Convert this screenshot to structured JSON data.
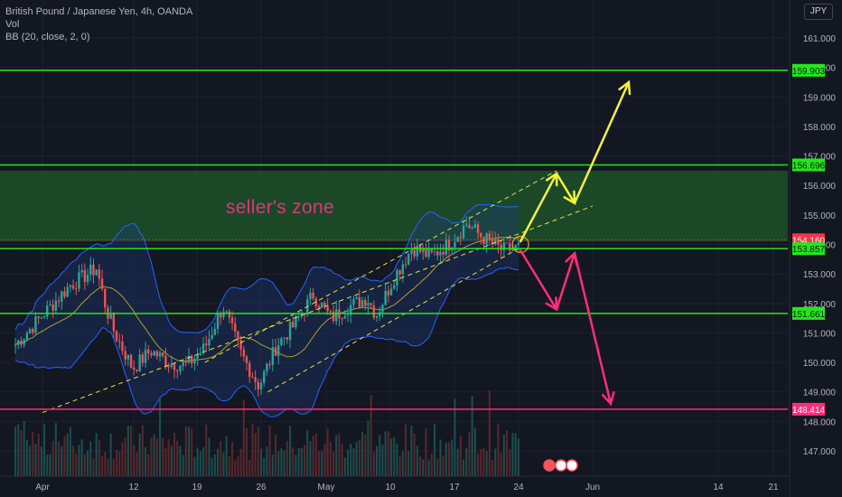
{
  "legend": {
    "symbol": "British Pound / Japanese Yen, 4h, OANDA",
    "volume": "Vol",
    "bb": "BB (20, close, 2, 0)"
  },
  "currency": "JPY",
  "zone_label": "seller's zone",
  "colors": {
    "background": "#131722",
    "green_level": "#22e81a",
    "pink_level": "#ff2e7a",
    "zone_fill": "#1f5a2a",
    "up_candle": "#26a69a",
    "down_candle": "#ef5350",
    "bb_band": "#2962ff",
    "bb_basis": "#b3a02a",
    "yellow_arrow": "#f3f33b",
    "pink_arrow": "#ff2e78",
    "channel": "#e6e63a"
  },
  "chart_data": {
    "type": "candlestick",
    "title": "British Pound / Japanese Yen, 4h, OANDA",
    "ylim": [
      146.3,
      162.6
    ],
    "y_ticks": [
      147.0,
      148.0,
      149.0,
      150.0,
      151.0,
      152.0,
      153.0,
      154.0,
      155.0,
      156.0,
      157.0,
      158.0,
      159.0,
      160.0,
      161.0
    ],
    "y_tick_labels": [
      "147.000",
      "148.000",
      "149.000",
      "150.000",
      "151.000",
      "152.000",
      "153.000",
      "154.000",
      "155.000",
      "156.000",
      "157.000",
      "158.000",
      "159.000",
      "160.000",
      "161.000"
    ],
    "x_ticks": [
      "Apr",
      "12",
      "19",
      "26",
      "May",
      "10",
      "17",
      "24",
      "Jun",
      "14",
      "21"
    ],
    "levels": [
      {
        "value": 159.903,
        "label": "159.903",
        "color": "green"
      },
      {
        "value": 156.696,
        "label": "156.696",
        "color": "green"
      },
      {
        "value": 154.16,
        "label": "154.160",
        "color": "red"
      },
      {
        "value": 153.857,
        "label": "153.857",
        "color": "green"
      },
      {
        "value": 151.661,
        "label": "151.661",
        "color": "green"
      },
      {
        "value": 148.414,
        "label": "148.414",
        "color": "pink"
      }
    ],
    "zone": {
      "from": 154.1,
      "to": 156.5,
      "label": "seller's zone"
    },
    "price_path": [
      {
        "date": "Mar 29",
        "price": 150.6
      },
      {
        "date": "Apr 1",
        "price": 151.6
      },
      {
        "date": "Apr 4",
        "price": 152.6
      },
      {
        "date": "Apr 7",
        "price": 153.2
      },
      {
        "date": "Apr 8",
        "price": 151.9
      },
      {
        "date": "Apr 9",
        "price": 151.0
      },
      {
        "date": "Apr 11",
        "price": 149.8
      },
      {
        "date": "Apr 13",
        "price": 150.4
      },
      {
        "date": "Apr 15",
        "price": 150.0
      },
      {
        "date": "Apr 17",
        "price": 149.9
      },
      {
        "date": "Apr 19",
        "price": 150.5
      },
      {
        "date": "Apr 21",
        "price": 151.9
      },
      {
        "date": "Apr 23",
        "price": 150.3
      },
      {
        "date": "Apr 25",
        "price": 149.2
      },
      {
        "date": "Apr 27",
        "price": 150.6
      },
      {
        "date": "Apr 29",
        "price": 151.3
      },
      {
        "date": "May 1",
        "price": 152.3
      },
      {
        "date": "May 3",
        "price": 151.5
      },
      {
        "date": "May 5",
        "price": 151.9
      },
      {
        "date": "May 7",
        "price": 152.2
      },
      {
        "date": "May 8",
        "price": 151.6
      },
      {
        "date": "May 10",
        "price": 152.9
      },
      {
        "date": "May 12",
        "price": 153.9
      },
      {
        "date": "May 14",
        "price": 153.6
      },
      {
        "date": "May 16",
        "price": 154.0
      },
      {
        "date": "May 18",
        "price": 154.7
      },
      {
        "date": "May 20",
        "price": 154.2
      },
      {
        "date": "May 22",
        "price": 153.8
      },
      {
        "date": "May 24",
        "price": 153.9
      }
    ],
    "channel": {
      "lower": [
        {
          "date": "Apr 1",
          "price": 148.3
        },
        {
          "date": "Jun 1",
          "price": 155.3
        }
      ],
      "upper": [
        {
          "date": "Apr 19",
          "price": 150.0
        },
        {
          "date": "May 28",
          "price": 156.5
        }
      ],
      "inner": [
        {
          "date": "Apr 26",
          "price": 149.0
        },
        {
          "date": "May 24",
          "price": 153.9
        }
      ]
    },
    "scenarios": [
      {
        "color": "yellow",
        "path": [
          {
            "date": "May 24",
            "price": 154.1
          },
          {
            "date": "May 28",
            "price": 156.4
          },
          {
            "date": "May 30",
            "price": 155.4
          },
          {
            "date": "Jun 5",
            "price": 159.5
          }
        ]
      },
      {
        "color": "pink",
        "path": [
          {
            "date": "May 24",
            "price": 153.8
          },
          {
            "date": "May 28",
            "price": 151.8
          },
          {
            "date": "May 30",
            "price": 153.7
          },
          {
            "date": "Jun 3",
            "price": 148.6
          }
        ]
      }
    ]
  }
}
